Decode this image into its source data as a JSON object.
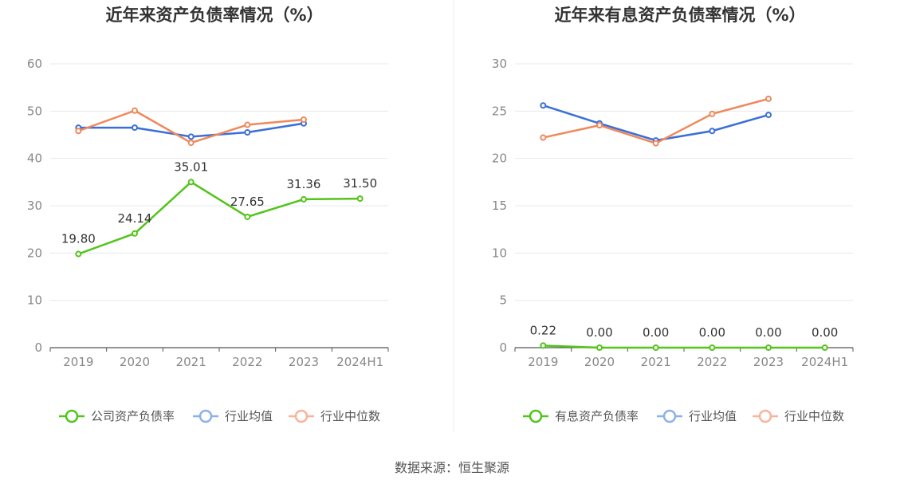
{
  "colors": {
    "company": "#52c41a",
    "industry_avg": "#3a6fd8",
    "industry_median": "#f0885a",
    "legend_avg": "#8cb0ec",
    "legend_median": "#f8b39a",
    "grid": "#e6e8ee",
    "axis": "#555555"
  },
  "chart_data": [
    {
      "type": "line",
      "title": "近年来资产负债率情况（%）",
      "categories": [
        "2019",
        "2020",
        "2021",
        "2022",
        "2023",
        "2024H1"
      ],
      "ylim": [
        0,
        60
      ],
      "yticks": [
        0,
        10,
        20,
        30,
        40,
        50,
        60
      ],
      "ytick_labels": [
        "0",
        "10",
        "20",
        "30",
        "40",
        "50",
        "60"
      ],
      "grid": true,
      "legend_position": "bottom",
      "series": [
        {
          "name": "公司资产负债率",
          "color_key": "company",
          "values": [
            19.8,
            24.14,
            35.01,
            27.65,
            31.36,
            31.5
          ],
          "labels": [
            "19.80",
            "24.14",
            "35.01",
            "27.65",
            "31.36",
            "31.50"
          ]
        },
        {
          "name": "行业均值",
          "color_key": "industry_avg",
          "legend_color_key": "legend_avg",
          "values": [
            46.5,
            46.5,
            44.6,
            45.5,
            47.4,
            null
          ]
        },
        {
          "name": "行业中位数",
          "color_key": "industry_median",
          "legend_color_key": "legend_median",
          "values": [
            45.8,
            50.1,
            43.3,
            47.1,
            48.2,
            null
          ]
        }
      ]
    },
    {
      "type": "line",
      "title": "近年来有息资产负债率情况（%）",
      "categories": [
        "2019",
        "2020",
        "2021",
        "2022",
        "2023",
        "2024H1"
      ],
      "ylim": [
        0,
        30
      ],
      "yticks": [
        0,
        5,
        10,
        15,
        20,
        25,
        30
      ],
      "ytick_labels": [
        "0",
        "5",
        "10",
        "15",
        "20",
        "25",
        "30"
      ],
      "grid": true,
      "legend_position": "bottom",
      "series": [
        {
          "name": "有息资产负债率",
          "color_key": "company",
          "values": [
            0.22,
            0.0,
            0.0,
            0.0,
            0.0,
            0.0
          ],
          "labels": [
            "0.22",
            "0.00",
            "0.00",
            "0.00",
            "0.00",
            "0.00"
          ]
        },
        {
          "name": "行业均值",
          "color_key": "industry_avg",
          "legend_color_key": "legend_avg",
          "values": [
            25.6,
            23.7,
            21.9,
            22.9,
            24.6,
            null
          ]
        },
        {
          "name": "行业中位数",
          "color_key": "industry_median",
          "legend_color_key": "legend_median",
          "values": [
            22.2,
            23.5,
            21.6,
            24.7,
            26.3,
            null
          ]
        }
      ]
    }
  ],
  "source_text": "数据来源：恒生聚源"
}
